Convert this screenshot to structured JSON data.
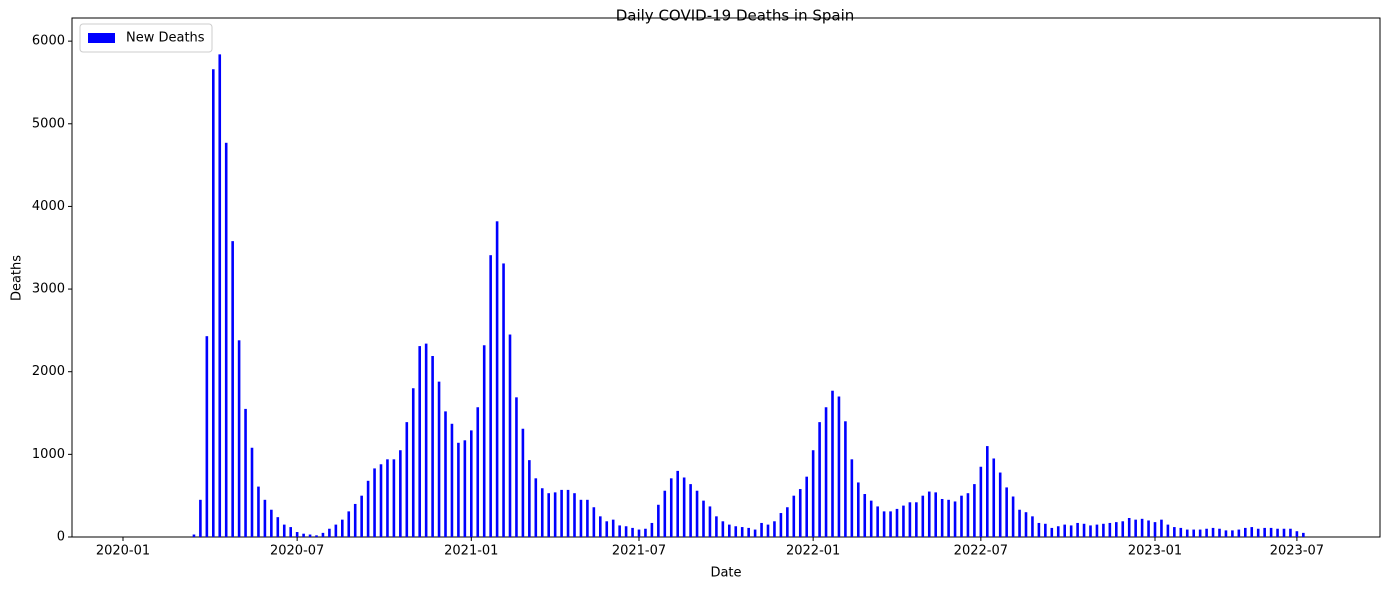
{
  "chart_data": {
    "type": "bar",
    "title": "Daily COVID-19 Deaths in Spain",
    "x_label": "Date",
    "y_label": "Deaths",
    "categories": [
      "2020-01",
      null,
      null,
      null,
      null,
      null,
      null,
      null,
      null,
      null,
      null,
      null,
      null,
      null,
      null,
      null,
      null,
      null,
      null,
      null,
      null,
      null,
      null,
      null,
      null,
      null,
      null,
      "2020-07",
      null,
      null,
      null,
      null,
      null,
      null,
      null,
      null,
      null,
      null,
      null,
      null,
      null,
      null,
      null,
      null,
      null,
      null,
      null,
      null,
      null,
      null,
      null,
      null,
      null,
      null,
      "2021-01",
      null,
      null,
      null,
      null,
      null,
      null,
      null,
      null,
      null,
      null,
      null,
      null,
      null,
      null,
      null,
      null,
      null,
      null,
      null,
      null,
      null,
      null,
      null,
      null,
      null,
      "2021-07",
      null,
      null,
      null,
      null,
      null,
      null,
      null,
      null,
      null,
      null,
      null,
      null,
      null,
      null,
      null,
      null,
      null,
      null,
      null,
      null,
      null,
      null,
      null,
      null,
      null,
      null,
      "2022-01",
      null,
      null,
      null,
      null,
      null,
      null,
      null,
      null,
      null,
      null,
      null,
      null,
      null,
      null,
      null,
      null,
      null,
      null,
      null,
      null,
      null,
      null,
      null,
      null,
      null,
      "2022-07",
      null,
      null,
      null,
      null,
      null,
      null,
      null,
      null,
      null,
      null,
      null,
      null,
      null,
      null,
      null,
      null,
      null,
      null,
      null,
      null,
      null,
      null,
      null,
      null,
      null,
      null,
      "2023-01",
      null,
      null,
      null,
      null,
      null,
      null,
      null,
      null,
      null,
      null,
      null,
      null,
      null,
      null,
      null,
      null,
      null,
      null,
      null,
      null,
      null,
      "2023-07",
      null
    ],
    "series": [
      {
        "name": "New Deaths",
        "color": "#0000ff",
        "values": [
          0,
          0,
          0,
          0,
          0,
          0,
          0,
          0,
          0,
          0,
          0,
          30,
          450,
          2430,
          5660,
          5840,
          4770,
          3580,
          2380,
          1550,
          1080,
          610,
          450,
          330,
          240,
          150,
          120,
          60,
          40,
          30,
          20,
          50,
          100,
          150,
          210,
          310,
          400,
          500,
          680,
          830,
          880,
          940,
          940,
          1050,
          1390,
          1800,
          2310,
          2340,
          2190,
          1880,
          1520,
          1370,
          1140,
          1170,
          1290,
          1570,
          2320,
          3410,
          3820,
          3310,
          2450,
          1690,
          1310,
          930,
          710,
          590,
          530,
          540,
          570,
          570,
          530,
          450,
          450,
          360,
          250,
          190,
          210,
          140,
          130,
          110,
          90,
          100,
          170,
          390,
          560,
          710,
          800,
          720,
          640,
          560,
          440,
          370,
          250,
          190,
          150,
          130,
          120,
          110,
          90,
          170,
          150,
          190,
          290,
          360,
          500,
          580,
          730,
          1050,
          1390,
          1570,
          1770,
          1700,
          1400,
          940,
          660,
          520,
          440,
          370,
          310,
          310,
          340,
          380,
          420,
          420,
          500,
          550,
          540,
          460,
          450,
          430,
          500,
          530,
          640,
          850,
          1100,
          950,
          780,
          600,
          490,
          330,
          300,
          250,
          170,
          160,
          110,
          130,
          150,
          140,
          170,
          160,
          140,
          150,
          160,
          170,
          180,
          190,
          230,
          210,
          220,
          200,
          180,
          210,
          150,
          120,
          110,
          90,
          90,
          90,
          100,
          110,
          100,
          80,
          80,
          90,
          110,
          120,
          100,
          110,
          110,
          100,
          100,
          100,
          70,
          50
        ]
      }
    ],
    "ylim": [
      0,
      6280
    ],
    "yticks": [
      0,
      1000,
      2000,
      3000,
      4000,
      5000,
      6000
    ],
    "grid": false,
    "legend": "upper left"
  }
}
